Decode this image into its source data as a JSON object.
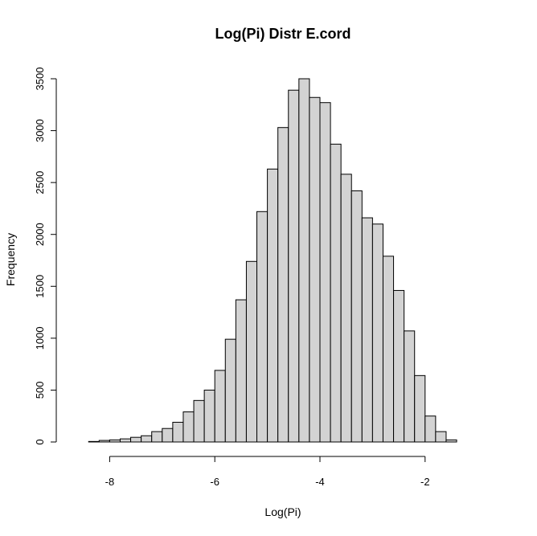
{
  "chart_data": {
    "type": "bar",
    "title": "Log(Pi) Distr E.cord",
    "xlabel": "Log(Pi)",
    "ylabel": "Frequency",
    "bin_width": 0.2,
    "bin_start": -8.6,
    "values": [
      0,
      5,
      15,
      20,
      30,
      45,
      60,
      100,
      130,
      190,
      290,
      400,
      500,
      690,
      990,
      1370,
      1740,
      2220,
      2630,
      3030,
      3390,
      3500,
      3320,
      3270,
      2870,
      2580,
      2420,
      2160,
      2100,
      1790,
      1460,
      1070,
      640,
      250,
      100,
      20
    ],
    "xlim": [
      -8.6,
      -1.2
    ],
    "ylim": [
      0,
      3500
    ],
    "x_ticks": [
      -8,
      -6,
      -4,
      -2
    ],
    "x_tick_labels": [
      "-8",
      "-6",
      "-4",
      "-2"
    ],
    "y_ticks": [
      0,
      500,
      1000,
      1500,
      2000,
      2500,
      3000,
      3500
    ],
    "y_tick_labels": [
      "0",
      "500",
      "1000",
      "1500",
      "2000",
      "2500",
      "3000",
      "3500"
    ],
    "grid": false,
    "bar_color": "#d3d3d3",
    "edge_color": "#000000"
  }
}
